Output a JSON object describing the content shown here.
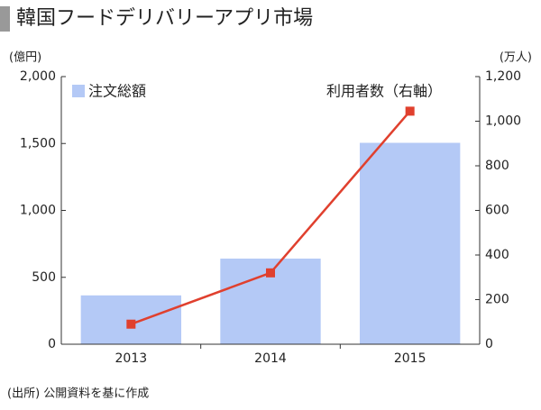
{
  "chart_data": {
    "type": "bar_line",
    "title": "韓国フードデリバリーアプリ市場",
    "y_label": "(億円)",
    "y2_label": "(万人)",
    "source": "(出所) 公開資料を基に作成",
    "categories": [
      "2013",
      "2014",
      "2015"
    ],
    "series": [
      {
        "name": "注文総額",
        "type": "bar",
        "color": "#b4c9f6",
        "values": [
          365,
          640,
          1505
        ]
      },
      {
        "name": "利用者数（右軸）",
        "type": "line",
        "axis": "y2",
        "color": "#e0402e",
        "values": [
          90,
          320,
          1045
        ]
      }
    ],
    "ylim": [
      0,
      2000
    ],
    "yticks": [
      0,
      500,
      {
        "value": 1000,
        "label": "1,000"
      },
      {
        "value": 1500,
        "label": "1,500"
      },
      {
        "value": 2000,
        "label": "2,000"
      }
    ],
    "y2lim": [
      0,
      1200
    ],
    "y2ticks": [
      0,
      200,
      400,
      600,
      800,
      {
        "value": 1000,
        "label": "1,000"
      },
      {
        "value": 1200,
        "label": "1,200"
      }
    ],
    "grid": false
  }
}
